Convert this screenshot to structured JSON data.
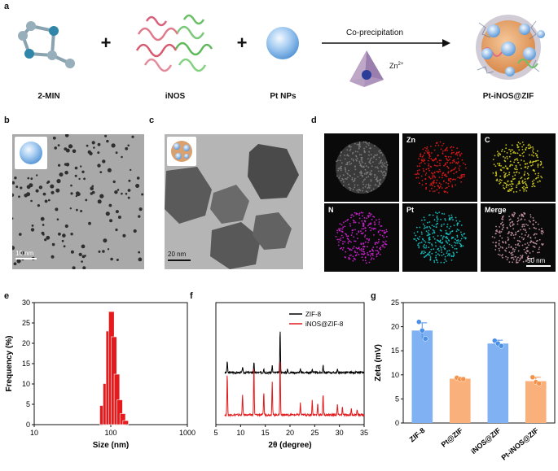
{
  "panels": {
    "a": "a",
    "b": "b",
    "c": "c",
    "d": "d",
    "e": "e",
    "f": "f",
    "g": "g"
  },
  "panel_a": {
    "labels": [
      "2-MIN",
      "iNOS",
      "Pt NPs",
      "Pt-iNOS@ZIF"
    ],
    "plus": "+",
    "arrow_label": "Co-precipitation",
    "zn_label": "Zn",
    "zn_sup": "2+"
  },
  "panel_b": {
    "scale_label": "10 nm"
  },
  "panel_c": {
    "scale_label": "20 nm"
  },
  "panel_d": {
    "tiles": [
      {
        "label": "",
        "color": "#3a3a3a"
      },
      {
        "label": "Zn",
        "color": "#d01818"
      },
      {
        "label": "C",
        "color": "#c6c21c"
      },
      {
        "label": "N",
        "color": "#c51fc8"
      },
      {
        "label": "Pt",
        "color": "#14b8b8"
      },
      {
        "label": "Merge",
        "color": "#b88a9a"
      }
    ],
    "scale_label": "50 nm"
  },
  "chart_data": [
    {
      "type": "bar",
      "panel": "e",
      "xlabel": "Size (nm)",
      "ylabel": "Frequency (%)",
      "xscale": "log",
      "xlim": [
        10,
        1000
      ],
      "ylim": [
        0,
        30
      ],
      "xticks": [
        10,
        100,
        1000
      ],
      "yticks": [
        0,
        5,
        10,
        15,
        20,
        25,
        30
      ],
      "color": "#e41a1c",
      "bins": [
        {
          "x": 78,
          "y": 4.7
        },
        {
          "x": 86,
          "y": 10.1
        },
        {
          "x": 94,
          "y": 23.0
        },
        {
          "x": 102,
          "y": 27.8
        },
        {
          "x": 110,
          "y": 21.6
        },
        {
          "x": 120,
          "y": 12.4
        },
        {
          "x": 131,
          "y": 6.1
        },
        {
          "x": 143,
          "y": 2.7
        },
        {
          "x": 156,
          "y": 1.0
        }
      ]
    },
    {
      "type": "line",
      "panel": "f",
      "xlabel": "2θ (degree)",
      "xlim": [
        5,
        35
      ],
      "xticks": [
        5,
        10,
        15,
        20,
        25,
        30,
        35
      ],
      "legend_position": "top-right",
      "series": [
        {
          "name": "ZIF-8",
          "color": "#000000",
          "offset": 1.0,
          "peaks": [
            [
              7.3,
              0.18
            ],
            [
              10.4,
              0.09
            ],
            [
              12.7,
              0.16
            ],
            [
              14.7,
              0.07
            ],
            [
              16.4,
              0.11
            ],
            [
              18.0,
              0.65
            ],
            [
              19.5,
              0.05
            ],
            [
              22.1,
              0.05
            ],
            [
              24.5,
              0.06
            ],
            [
              26.7,
              0.12
            ],
            [
              29.6,
              0.05
            ]
          ]
        },
        {
          "name": "iNOS@ZIF-8",
          "color": "#e41a1c",
          "offset": 0.0,
          "peaks": [
            [
              7.3,
              0.65
            ],
            [
              10.4,
              0.32
            ],
            [
              12.7,
              0.75
            ],
            [
              14.7,
              0.35
            ],
            [
              16.4,
              0.52
            ],
            [
              18.0,
              0.85
            ],
            [
              22.1,
              0.18
            ],
            [
              24.5,
              0.22
            ],
            [
              25.6,
              0.18
            ],
            [
              26.7,
              0.32
            ],
            [
              29.6,
              0.16
            ],
            [
              30.6,
              0.12
            ],
            [
              32.4,
              0.1
            ],
            [
              33.6,
              0.08
            ]
          ]
        }
      ]
    },
    {
      "type": "bar",
      "panel": "g",
      "ylabel": "Zeta (mV)",
      "ylim": [
        0,
        25
      ],
      "yticks": [
        0,
        5,
        10,
        15,
        20,
        25
      ],
      "categories": [
        "ZIF-8",
        "Pt@ZIF",
        "iNOS@ZIF",
        "Pt-iNOS@ZIF"
      ],
      "values": [
        19.2,
        9.2,
        16.5,
        8.7
      ],
      "errors": [
        1.6,
        0.3,
        0.7,
        0.8
      ],
      "points": [
        [
          21.0,
          19.2,
          17.5
        ],
        [
          9.4,
          9.1,
          9.1
        ],
        [
          17.1,
          16.5,
          16.0
        ],
        [
          9.5,
          8.5,
          8.2
        ]
      ],
      "colors": [
        "#7fb1f3",
        "#f9b07a",
        "#7fb1f3",
        "#f9b07a"
      ],
      "point_colors": [
        "#4a8fe8",
        "#f5924a",
        "#4a8fe8",
        "#f5924a"
      ]
    }
  ]
}
